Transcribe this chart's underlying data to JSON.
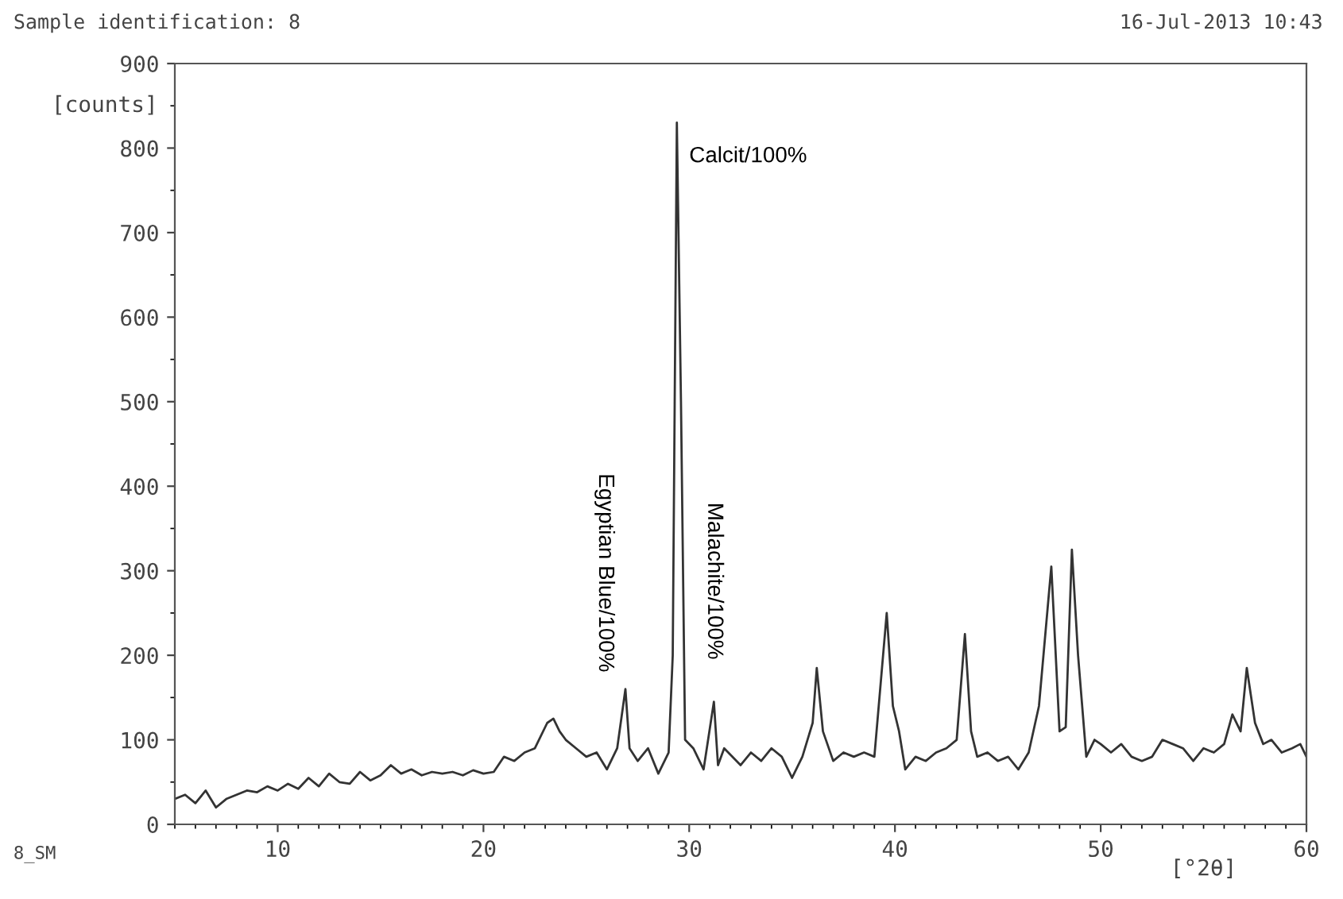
{
  "chart_data": {
    "type": "line",
    "title": "Sample identification: 8",
    "subtitle": "16-Jul-2013 10:43",
    "xlabel": "[°2θ]",
    "ylabel": "[counts]",
    "annotations": [
      {
        "text": "Calcit/100%",
        "x": 29.4,
        "y": 830
      },
      {
        "text": "Egyptian Blue/100%",
        "x": 26.9,
        "y": 160
      },
      {
        "text": "Malachite/100%",
        "x": 31.2,
        "y": 145
      },
      "8_SM"
    ],
    "x": [
      5,
      5.5,
      6,
      6.5,
      7,
      7.5,
      8,
      8.5,
      9,
      9.5,
      10,
      10.5,
      11,
      11.5,
      12,
      12.5,
      13,
      13.5,
      14,
      14.5,
      15,
      15.5,
      16,
      16.5,
      17,
      17.5,
      18,
      18.5,
      19,
      19.5,
      20,
      20.5,
      21,
      21.5,
      22,
      22.5,
      23.1,
      23.4,
      23.7,
      24,
      24.5,
      25,
      25.5,
      26,
      26.5,
      26.9,
      27.1,
      27.5,
      28,
      28.5,
      29,
      29.2,
      29.4,
      29.6,
      29.8,
      30.2,
      30.7,
      31.2,
      31.4,
      31.7,
      32.5,
      33,
      33.5,
      34,
      34.5,
      35,
      35.5,
      36,
      36.2,
      36.5,
      37,
      37.5,
      38,
      38.5,
      39,
      39.6,
      39.9,
      40.2,
      40.5,
      41,
      41.5,
      42,
      42.5,
      43,
      43.4,
      43.7,
      44,
      44.5,
      45,
      45.5,
      46,
      46.5,
      47,
      47.6,
      48,
      48.3,
      48.6,
      48.9,
      49.3,
      49.7,
      50,
      50.5,
      51,
      51.5,
      52,
      52.5,
      53,
      53.5,
      54,
      54.5,
      55,
      55.5,
      56,
      56.4,
      56.8,
      57.1,
      57.5,
      57.9,
      58.3,
      58.8,
      59.3,
      59.7,
      60
    ],
    "values": [
      30,
      35,
      25,
      40,
      20,
      30,
      35,
      40,
      38,
      45,
      40,
      48,
      42,
      55,
      45,
      60,
      50,
      48,
      62,
      52,
      58,
      70,
      60,
      65,
      58,
      62,
      60,
      62,
      58,
      64,
      60,
      62,
      80,
      75,
      85,
      90,
      120,
      125,
      110,
      100,
      90,
      80,
      85,
      65,
      90,
      160,
      90,
      75,
      90,
      60,
      85,
      200,
      830,
      500,
      100,
      90,
      65,
      145,
      70,
      90,
      70,
      85,
      75,
      90,
      80,
      55,
      80,
      120,
      185,
      110,
      75,
      85,
      80,
      85,
      80,
      250,
      140,
      110,
      65,
      80,
      75,
      85,
      90,
      100,
      225,
      110,
      80,
      85,
      75,
      80,
      65,
      85,
      140,
      305,
      110,
      115,
      325,
      200,
      80,
      100,
      95,
      85,
      95,
      80,
      75,
      80,
      100,
      95,
      90,
      75,
      90,
      85,
      95,
      130,
      110,
      185,
      120,
      95,
      100,
      85,
      90,
      95,
      80
    ],
    "color": "#333333",
    "xlim": [
      5,
      60
    ],
    "xticks": [
      10,
      20,
      30,
      40,
      50,
      60
    ],
    "ylim": [
      0,
      900
    ],
    "yticks": [
      0,
      100,
      200,
      300,
      400,
      500,
      600,
      700,
      800,
      900
    ],
    "grid": false,
    "legend": false,
    "marker": "none",
    "line_style": "solid"
  }
}
